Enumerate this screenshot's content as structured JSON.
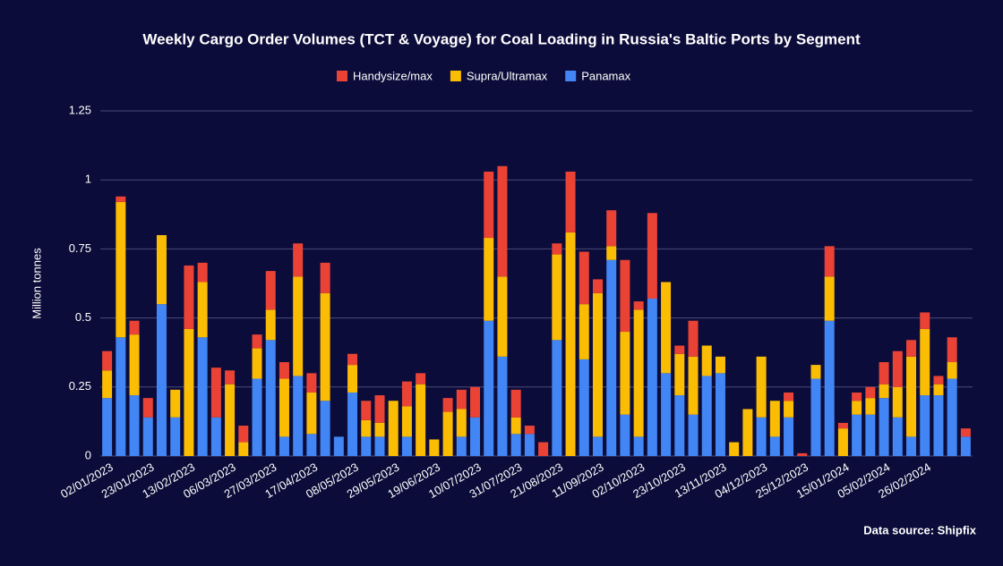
{
  "chart_data": {
    "type": "stacked_bar",
    "title": "Weekly Cargo Order Volumes (TCT & Voyage) for Coal Loading in Russia's Baltic Ports by Segment",
    "y_axis_label": "Million tonnes",
    "source": "Data source: Shipfix",
    "categories": [
      "02/01/2023",
      null,
      null,
      "23/01/2023",
      null,
      null,
      "13/02/2023",
      null,
      null,
      "06/03/2023",
      null,
      null,
      "27/03/2023",
      null,
      null,
      "17/04/2023",
      null,
      null,
      "08/05/2023",
      null,
      null,
      "29/05/2023",
      null,
      null,
      "19/06/2023",
      null,
      null,
      "10/07/2023",
      null,
      null,
      "31/07/2023",
      null,
      null,
      "21/08/2023",
      null,
      null,
      "11/09/2023",
      null,
      null,
      "02/10/2023",
      null,
      null,
      "23/10/2023",
      null,
      null,
      "13/11/2023",
      null,
      null,
      "04/12/2023",
      null,
      null,
      "25/12/2023",
      null,
      null,
      "15/01/2024",
      null,
      null,
      "05/02/2024",
      null,
      null,
      "26/02/2024",
      null,
      null,
      null
    ],
    "series": [
      {
        "name": "Handysize/max",
        "color": "#ea4335",
        "values": [
          0.07,
          0.02,
          0.05,
          0.07,
          0,
          0,
          0.23,
          0.07,
          0.18,
          0.05,
          0.06,
          0.05,
          0.14,
          0.06,
          0.12,
          0.07,
          0.11,
          0,
          0.04,
          0.07,
          0.1,
          0,
          0.09,
          0.04,
          0,
          0.05,
          0.07,
          0.11,
          0.24,
          0.4,
          0.1,
          0.03,
          0.05,
          0.04,
          0.22,
          0.19,
          0.05,
          0.13,
          0.26,
          0.03,
          0.31,
          0,
          0.03,
          0.13,
          0,
          0,
          0,
          0,
          0,
          0,
          0.03,
          0.01,
          0,
          0.11,
          0.02,
          0.03,
          0.04,
          0.08,
          0.13,
          0.06,
          0.06,
          0.03,
          0.09,
          0.03
        ]
      },
      {
        "name": "Supra/Ultramax",
        "color": "#fbbc04",
        "values": [
          0.1,
          0.49,
          0.22,
          0,
          0.25,
          0.1,
          0.46,
          0.2,
          0,
          0.26,
          0.05,
          0.11,
          0.11,
          0.21,
          0.36,
          0.15,
          0.39,
          0,
          0.1,
          0.06,
          0.05,
          0.2,
          0.11,
          0.26,
          0.06,
          0.16,
          0.1,
          0,
          0.3,
          0.29,
          0.06,
          0,
          0,
          0.31,
          0.81,
          0.2,
          0.52,
          0.05,
          0.3,
          0.46,
          0,
          0.33,
          0.15,
          0.21,
          0.11,
          0.06,
          0.05,
          0.17,
          0.22,
          0.13,
          0.06,
          0,
          0.05,
          0.16,
          0.1,
          0.05,
          0.06,
          0.05,
          0.11,
          0.29,
          0.24,
          0.04,
          0.06,
          0
        ]
      },
      {
        "name": "Panamax",
        "color": "#4285f4",
        "values": [
          0.21,
          0.43,
          0.22,
          0.14,
          0.55,
          0.14,
          0,
          0.43,
          0.14,
          0,
          0,
          0.28,
          0.42,
          0.07,
          0.29,
          0.08,
          0.2,
          0.07,
          0.23,
          0.07,
          0.07,
          0,
          0.07,
          0,
          0,
          0,
          0.07,
          0.14,
          0.49,
          0.36,
          0.08,
          0.08,
          0,
          0.42,
          0,
          0.35,
          0.07,
          0.71,
          0.15,
          0.07,
          0.57,
          0.3,
          0.22,
          0.15,
          0.29,
          0.3,
          0,
          0,
          0.14,
          0.07,
          0.14,
          0,
          0.28,
          0.49,
          0,
          0.15,
          0.15,
          0.21,
          0.14,
          0.07,
          0.22,
          0.22,
          0.28,
          0.07
        ]
      }
    ],
    "ylim": [
      0,
      1.25
    ],
    "yticks": [
      0,
      0.25,
      0.5,
      0.75,
      1,
      1.25
    ],
    "grid": true,
    "legend": "top"
  }
}
